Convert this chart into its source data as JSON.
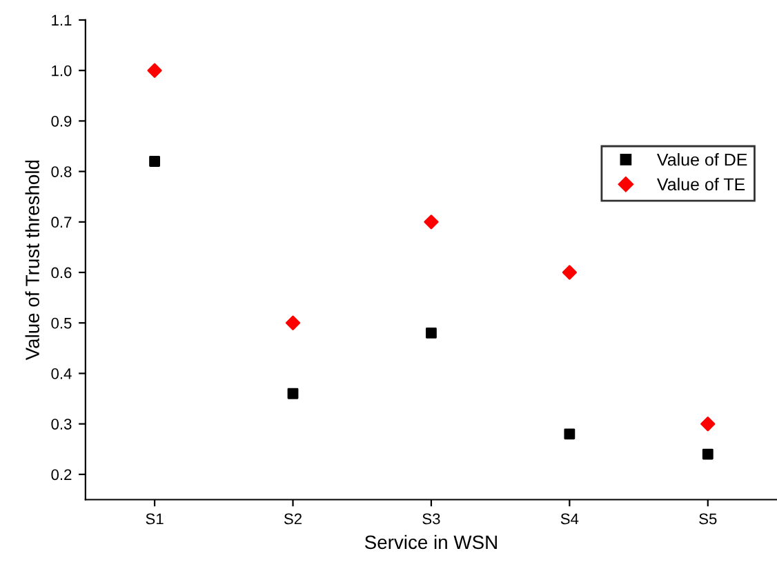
{
  "chart_data": {
    "type": "scatter",
    "xlabel": "Service in WSN",
    "ylabel": "Value of Trust threshold",
    "categories": [
      "S1",
      "S2",
      "S3",
      "S4",
      "S5"
    ],
    "series": [
      {
        "name": "Value of DE",
        "color": "#000000",
        "marker": "square",
        "values": [
          0.82,
          0.36,
          0.48,
          0.28,
          0.24
        ]
      },
      {
        "name": "Value of TE",
        "color": "#ff0000",
        "marker": "diamond",
        "values": [
          1.0,
          0.5,
          0.7,
          0.6,
          0.3
        ]
      }
    ],
    "ylim": [
      0.15,
      1.1
    ],
    "yticks": [
      0.2,
      0.3,
      0.4,
      0.5,
      0.6,
      0.7,
      0.8,
      0.9,
      {
        "value": 1.0,
        "label": "1.0"
      },
      1.1
    ],
    "grid": false,
    "legend": "right"
  }
}
